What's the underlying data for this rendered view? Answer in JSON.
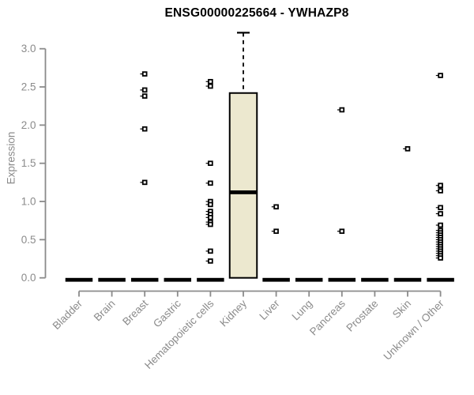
{
  "chart_data": {
    "type": "boxplot",
    "title": "ENSG00000225664 - YWHAZP8",
    "ylabel": "Expression",
    "xlabel": "",
    "ylim": [
      0.0,
      3.0
    ],
    "yticks": [
      0.0,
      0.5,
      1.0,
      1.5,
      2.0,
      2.5,
      3.0
    ],
    "grid": false,
    "legend": "none",
    "categories": [
      "Bladder",
      "Brain",
      "Breast",
      "Gastric",
      "Hematopoietic cells",
      "Kidney",
      "Liver",
      "Lung",
      "Pancreas",
      "Prostate",
      "Skin",
      "Unknown / Other"
    ],
    "boxes": [
      {
        "category": "Bladder",
        "q1": 0.0,
        "median": 0.0,
        "q3": 0.0,
        "whisker_low": 0.0,
        "whisker_high": 0.0,
        "outliers": []
      },
      {
        "category": "Brain",
        "q1": 0.0,
        "median": 0.0,
        "q3": 0.0,
        "whisker_low": 0.0,
        "whisker_high": 0.0,
        "outliers": []
      },
      {
        "category": "Breast",
        "q1": 0.0,
        "median": 0.0,
        "q3": 0.0,
        "whisker_low": 0.0,
        "whisker_high": 0.0,
        "outliers": [
          2.67,
          2.46,
          2.38,
          1.95,
          1.25
        ]
      },
      {
        "category": "Gastric",
        "q1": 0.0,
        "median": 0.0,
        "q3": 0.0,
        "whisker_low": 0.0,
        "whisker_high": 0.0,
        "outliers": []
      },
      {
        "category": "Hematopoietic cells",
        "q1": 0.0,
        "median": 0.0,
        "q3": 0.0,
        "whisker_low": 0.0,
        "whisker_high": 0.0,
        "outliers": [
          2.57,
          2.51,
          1.5,
          1.24,
          1.0,
          0.96,
          0.87,
          0.83,
          0.79,
          0.73,
          0.7,
          0.35,
          0.22
        ]
      },
      {
        "category": "Kidney",
        "q1": 0.0,
        "median": 1.12,
        "q3": 2.42,
        "whisker_low": 0.0,
        "whisker_high": 3.21,
        "outliers": []
      },
      {
        "category": "Liver",
        "q1": 0.0,
        "median": 0.0,
        "q3": 0.0,
        "whisker_low": 0.0,
        "whisker_high": 0.0,
        "outliers": [
          0.93,
          0.61
        ]
      },
      {
        "category": "Lung",
        "q1": 0.0,
        "median": 0.0,
        "q3": 0.0,
        "whisker_low": 0.0,
        "whisker_high": 0.0,
        "outliers": []
      },
      {
        "category": "Pancreas",
        "q1": 0.0,
        "median": 0.0,
        "q3": 0.0,
        "whisker_low": 0.0,
        "whisker_high": 0.0,
        "outliers": [
          2.2,
          0.61
        ]
      },
      {
        "category": "Prostate",
        "q1": 0.0,
        "median": 0.0,
        "q3": 0.0,
        "whisker_low": 0.0,
        "whisker_high": 0.0,
        "outliers": []
      },
      {
        "category": "Skin",
        "q1": 0.0,
        "median": 0.0,
        "q3": 0.0,
        "whisker_low": 0.0,
        "whisker_high": 0.0,
        "outliers": [
          1.69
        ]
      },
      {
        "category": "Unknown / Other",
        "q1": 0.0,
        "median": 0.0,
        "q3": 0.0,
        "whisker_low": 0.0,
        "whisker_high": 0.0,
        "outliers": [
          2.65,
          1.21,
          1.14,
          0.92,
          0.84,
          0.69,
          0.62,
          0.59,
          0.56,
          0.53,
          0.5,
          0.47,
          0.44,
          0.41,
          0.38,
          0.35,
          0.32,
          0.29,
          0.26
        ]
      }
    ],
    "colors": {
      "background": "#ffffff",
      "title_text": "#000000",
      "axis": "#8b8b8b",
      "tick_label_text": "#8b8b8b",
      "box_fill": "#ece8cf",
      "box_border": "#000000",
      "median_line": "#000000",
      "whisker": "#000000",
      "outlier_marker": "#000000"
    }
  }
}
